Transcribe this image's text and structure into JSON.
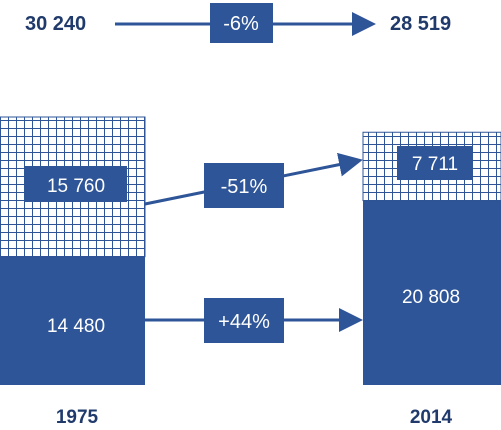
{
  "chart_data": {
    "type": "bar",
    "categories": [
      "1975",
      "2014"
    ],
    "series": [
      {
        "values": [
          14480,
          20808
        ],
        "pattern": "solid"
      },
      {
        "values": [
          15760,
          7711
        ],
        "pattern": "grid"
      }
    ],
    "totals": {
      "start": "30 240",
      "end": "28 519",
      "change": "-6%"
    },
    "changes": {
      "grid": "-51%",
      "solid": "+44%"
    },
    "value_labels": {
      "bottom_1975": "14 480",
      "top_1975": "15 760",
      "bottom_2014": "20 808",
      "top_2014": "7 711"
    },
    "colors": {
      "bar": "#2e5597",
      "dark": "#1f3a6b",
      "grid_line": "#2e5597"
    }
  }
}
